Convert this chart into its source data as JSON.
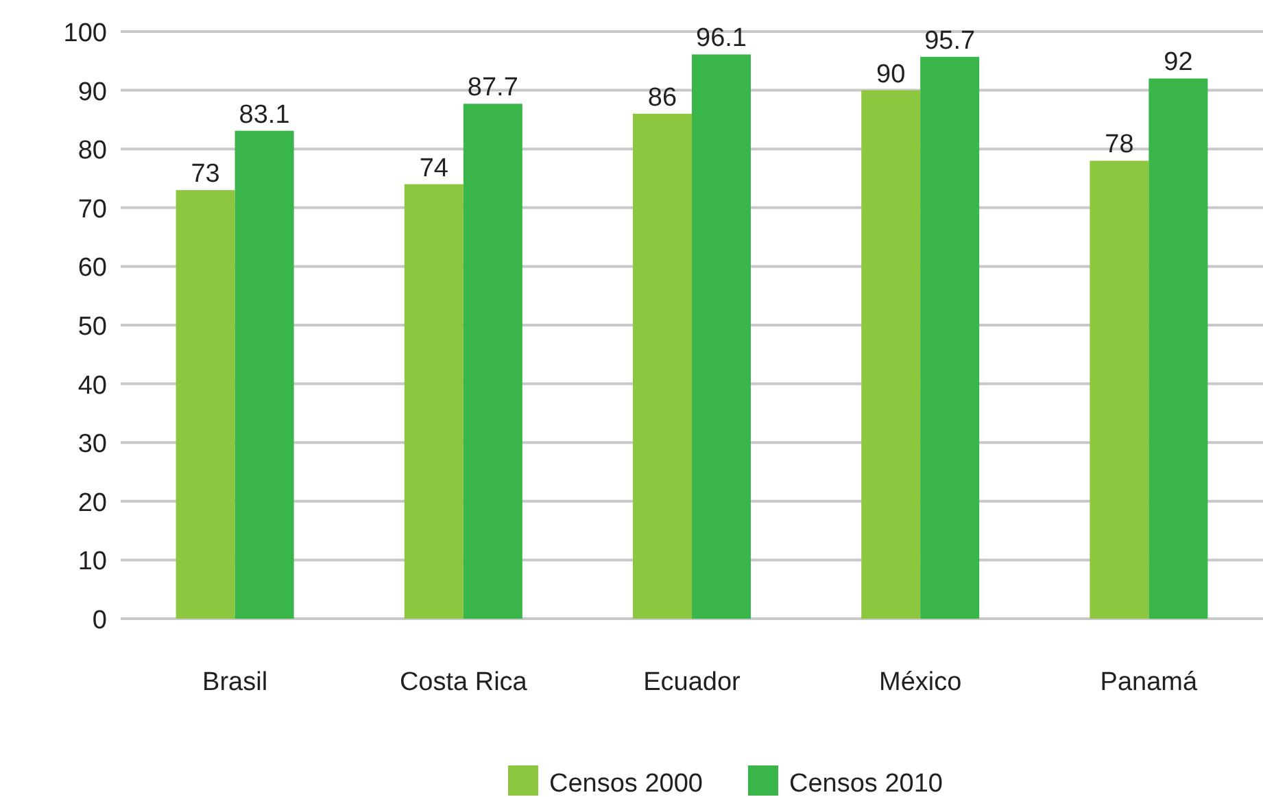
{
  "chart_data": {
    "type": "bar",
    "categories": [
      "Brasil",
      "Costa Rica",
      "Ecuador",
      "México",
      "Panamá"
    ],
    "series": [
      {
        "name": "Censos 2000",
        "color": "#8dc63f",
        "values": [
          73,
          74,
          86,
          90,
          78
        ]
      },
      {
        "name": "Censos 2010",
        "color": "#39b54a",
        "values": [
          83.1,
          87.7,
          96.1,
          95.7,
          92
        ]
      }
    ],
    "ylim": [
      0,
      100
    ],
    "yticks": [
      0,
      10,
      20,
      30,
      40,
      50,
      60,
      70,
      80,
      90,
      100
    ],
    "grid": "y",
    "legend": "bottom",
    "data_labels": true
  }
}
